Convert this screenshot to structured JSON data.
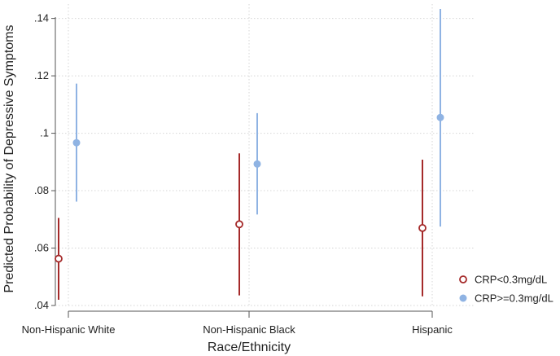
{
  "chart_data": {
    "type": "scatter",
    "title": "",
    "xlabel": "Race/Ethnicity",
    "ylabel": "Predicted Probability of Depressive Symptoms",
    "categories": [
      "Non-Hispanic White",
      "Non-Hispanic Black",
      "Hispanic"
    ],
    "ylim": [
      0.04,
      0.145
    ],
    "yticks": [
      {
        "value": 0.04,
        "label": ".04"
      },
      {
        "value": 0.06,
        "label": ".06"
      },
      {
        "value": 0.08,
        "label": ".08"
      },
      {
        "value": 0.1,
        "label": ".1"
      },
      {
        "value": 0.12,
        "label": ".12"
      },
      {
        "value": 0.14,
        "label": ".14"
      }
    ],
    "grid": true,
    "legend_position": "right",
    "series": [
      {
        "name": "CRP<0.3mg/dL",
        "color": "#a52a2a",
        "marker": "hollow-circle",
        "values": [
          0.0563,
          0.0683,
          0.067
        ],
        "lower": [
          0.042,
          0.0435,
          0.0432
        ],
        "upper": [
          0.0705,
          0.093,
          0.0908
        ]
      },
      {
        "name": "CRP>=0.3mg/dL",
        "color": "#8fb3e3",
        "marker": "filled-circle",
        "values": [
          0.0967,
          0.0893,
          0.1055
        ],
        "lower": [
          0.0762,
          0.0717,
          0.0675
        ],
        "upper": [
          0.1173,
          0.107,
          0.1433
        ]
      }
    ]
  }
}
